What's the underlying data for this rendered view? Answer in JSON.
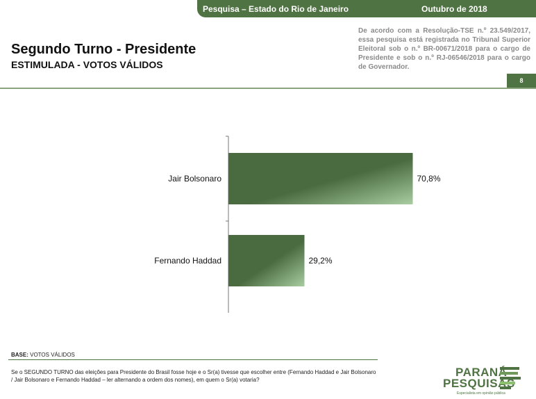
{
  "header": {
    "survey": "Pesquisa – Estado do Rio de Janeiro",
    "date": "Outubro de 2018",
    "legal": "De acordo com a Resolução-TSE n.º 23.549/2017, essa pesquisa está registrada no Tribunal Superior Eleitoral sob o n.º BR-00671/2018 para o cargo de Presidente e sob o n.º RJ-06546/2018 para o cargo de Governador.",
    "page_number": "8"
  },
  "title": "Segundo Turno - Presidente",
  "subtitle": "ESTIMULADA - VOTOS VÁLIDOS",
  "footer": {
    "base_label": "BASE:",
    "base_value": "VOTOS VÁLIDOS",
    "question": "Se o SEGUNDO TURNO das eleições para Presidente do Brasil fosse hoje e o Sr(a) tivesse que escolher entre (Fernando Haddad e Jair Bolsonaro / Jair Bolsonaro e Fernando Haddad – ler alternando a ordem dos nomes), em quem o Sr(a) votaria?"
  },
  "logo": {
    "line1": "PARANÁ",
    "line2": "PESQUISAS",
    "tagline": "Especialista em opinião pública"
  },
  "colors": {
    "brand_green": "#4f7342",
    "bar_dark": "#4a6b3f",
    "bar_light": "#a8cda0"
  },
  "chart_data": {
    "type": "bar",
    "orientation": "horizontal",
    "categories": [
      "Jair Bolsonaro",
      "Fernando Haddad"
    ],
    "values": [
      70.8,
      29.2
    ],
    "labels": [
      "70,8%",
      "29,2%"
    ],
    "xlim": [
      0,
      100
    ]
  }
}
